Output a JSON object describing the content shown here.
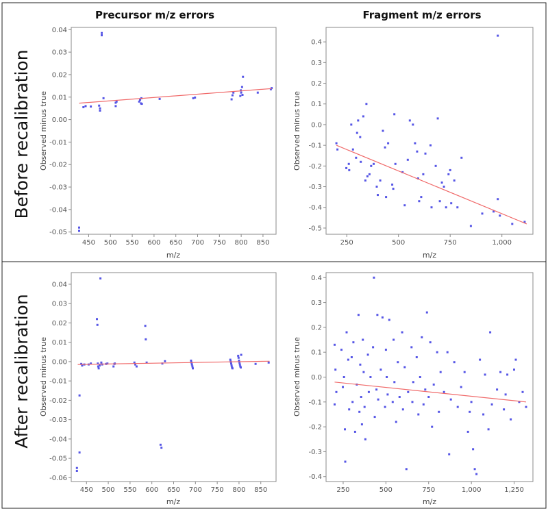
{
  "figure": {
    "column_titles": [
      "Precursor m/z errors",
      "Fragment m/z errors"
    ],
    "row_titles": [
      "Before recalibration",
      "After recalibration"
    ]
  },
  "chart_data": [
    {
      "type": "scatter",
      "id": "precursor-before",
      "title": "",
      "xlabel": "m/z",
      "ylabel": "Observed minus true",
      "xlim": [
        410,
        880
      ],
      "ylim": [
        -0.051,
        0.041
      ],
      "xticks": [
        450,
        500,
        550,
        600,
        650,
        700,
        750,
        800,
        850
      ],
      "xtick_labels": [
        "450",
        "500",
        "550",
        "600",
        "650",
        "700",
        "750",
        "800",
        "850"
      ],
      "yticks": [
        0.04,
        0.03,
        0.02,
        0.01,
        0.0,
        -0.01,
        -0.02,
        -0.03,
        -0.04,
        -0.05
      ],
      "ytick_labels": [
        "0.04",
        "0.03",
        "0.02",
        "0.01",
        "0.00",
        "-0.01",
        "-0.02",
        "-0.03",
        "-0.04",
        "-0.05"
      ],
      "x": [
        428,
        428,
        438,
        443,
        455,
        474,
        476,
        476,
        480,
        480,
        484,
        512,
        512,
        514,
        566,
        568,
        570,
        571,
        572,
        613,
        690,
        694,
        778,
        780,
        782,
        798,
        799,
        800,
        802,
        803,
        804,
        838,
        868,
        870
      ],
      "y": [
        -0.048,
        -0.0495,
        0.0055,
        0.006,
        0.0058,
        0.0062,
        0.004,
        0.005,
        0.0375,
        0.0385,
        0.0095,
        0.006,
        0.0075,
        0.008,
        0.008,
        0.0088,
        0.0072,
        0.0095,
        0.007,
        0.0092,
        0.0095,
        0.0098,
        0.009,
        0.0108,
        0.012,
        0.0105,
        0.013,
        0.012,
        0.0145,
        0.011,
        0.019,
        0.012,
        0.0135,
        0.014
      ],
      "fit": {
        "x": [
          428,
          870
        ],
        "y": [
          0.0073,
          0.0138
        ]
      }
    },
    {
      "type": "scatter",
      "id": "fragment-before",
      "title": "",
      "xlabel": "m/z",
      "ylabel": "Observed minus true",
      "xlim": [
        150,
        1150
      ],
      "ylim": [
        -0.53,
        0.47
      ],
      "xticks": [
        250,
        500,
        750,
        1000
      ],
      "xtick_labels": [
        "250",
        "500",
        "750",
        "1,000"
      ],
      "yticks": [
        0.4,
        0.3,
        0.2,
        0.1,
        0.0,
        -0.1,
        -0.2,
        -0.3,
        -0.4,
        -0.5
      ],
      "ytick_labels": [
        "0.4",
        "0.3",
        "0.2",
        "0.1",
        "0.0",
        "-0.1",
        "-0.2",
        "-0.3",
        "-0.4",
        "-0.5"
      ],
      "x": [
        200,
        205,
        248,
        260,
        262,
        272,
        280,
        295,
        300,
        305,
        315,
        318,
        330,
        340,
        345,
        350,
        360,
        368,
        380,
        395,
        400,
        412,
        425,
        435,
        440,
        450,
        470,
        475,
        480,
        485,
        520,
        530,
        545,
        555,
        570,
        580,
        590,
        595,
        600,
        610,
        620,
        630,
        655,
        660,
        680,
        690,
        700,
        710,
        720,
        730,
        742,
        750,
        755,
        770,
        785,
        805,
        850,
        905,
        960,
        980,
        990,
        1050,
        1110
      ],
      "y": [
        -0.09,
        -0.12,
        -0.21,
        -0.19,
        -0.22,
        0.0,
        -0.12,
        -0.16,
        -0.04,
        0.02,
        -0.06,
        -0.18,
        0.04,
        -0.27,
        0.1,
        -0.25,
        -0.24,
        -0.2,
        -0.19,
        -0.3,
        -0.34,
        -0.27,
        -0.03,
        -0.11,
        -0.35,
        -0.09,
        -0.29,
        -0.31,
        0.05,
        -0.19,
        -0.23,
        -0.39,
        -0.17,
        0.02,
        0.0,
        -0.09,
        -0.13,
        -0.26,
        -0.37,
        -0.35,
        -0.24,
        -0.14,
        -0.1,
        -0.4,
        -0.2,
        0.03,
        -0.37,
        -0.28,
        -0.3,
        -0.4,
        -0.24,
        -0.22,
        -0.38,
        -0.27,
        -0.4,
        -0.16,
        -0.49,
        -0.43,
        -0.42,
        -0.36,
        -0.44,
        -0.48,
        -0.47
      ],
      "extra_points": [
        {
          "x": 980,
          "y": 0.43
        }
      ],
      "fit": {
        "x": [
          200,
          1120
        ],
        "y": [
          -0.1,
          -0.48
        ]
      }
    },
    {
      "type": "scatter",
      "id": "precursor-after",
      "title": "",
      "xlabel": "m/z",
      "ylabel": "Observed minus true",
      "xlim": [
        415,
        885
      ],
      "ylim": [
        -0.062,
        0.046
      ],
      "xticks": [
        450,
        500,
        550,
        600,
        650,
        700,
        750,
        800,
        850
      ],
      "xtick_labels": [
        "450",
        "500",
        "550",
        "600",
        "650",
        "700",
        "750",
        "800",
        "850"
      ],
      "yticks": [
        0.04,
        0.03,
        0.02,
        0.01,
        0.0,
        -0.01,
        -0.02,
        -0.03,
        -0.04,
        -0.05,
        -0.06
      ],
      "ytick_labels": [
        "0.04",
        "0.03",
        "0.02",
        "0.01",
        "0.00",
        "-0.01",
        "-0.02",
        "-0.03",
        "-0.04",
        "-0.05",
        "-0.06"
      ],
      "x": [
        428,
        428,
        434,
        434,
        438,
        440,
        445,
        455,
        460,
        474,
        475,
        476,
        477,
        478,
        480,
        482,
        484,
        486,
        495,
        498,
        512,
        514,
        515,
        560,
        562,
        565,
        585,
        586,
        588,
        620,
        622,
        624,
        630,
        690,
        691,
        692,
        693,
        694,
        780,
        781,
        782,
        783,
        784,
        785,
        798,
        799,
        800,
        801,
        802,
        803,
        804,
        805,
        838,
        868
      ],
      "y": [
        -0.055,
        -0.0565,
        -0.047,
        -0.0175,
        -0.0012,
        -0.002,
        -0.0015,
        -0.0015,
        -0.001,
        0.022,
        0.019,
        -0.001,
        -0.0025,
        -0.0035,
        -0.002,
        0.043,
        -0.0005,
        -0.0015,
        -0.0012,
        -0.001,
        -0.0025,
        -0.0012,
        -0.001,
        -0.0005,
        -0.0015,
        -0.0025,
        0.0185,
        0.0115,
        -0.0005,
        -0.043,
        -0.0445,
        -0.001,
        0.0002,
        0.0005,
        -0.0005,
        -0.0015,
        -0.0025,
        -0.0035,
        0.001,
        0.0,
        -0.001,
        -0.002,
        -0.003,
        -0.0035,
        0.003,
        0.002,
        0.0005,
        -0.0005,
        -0.0015,
        -0.0025,
        -0.003,
        0.0035,
        -0.0012,
        -0.0005
      ],
      "fit": {
        "x": [
          430,
          870
        ],
        "y": [
          -0.0015,
          0.0002
        ]
      }
    },
    {
      "type": "scatter",
      "id": "fragment-after",
      "title": "",
      "xlabel": "m/z",
      "ylabel": "Observed minus true",
      "xlim": [
        150,
        1360
      ],
      "ylim": [
        -0.42,
        0.42
      ],
      "xticks": [
        250,
        500,
        750,
        1000,
        1250
      ],
      "xtick_labels": [
        "250",
        "500",
        "750",
        "1,000",
        "1,250"
      ],
      "yticks": [
        0.4,
        0.3,
        0.2,
        0.1,
        0.0,
        -0.1,
        -0.2,
        -0.3,
        -0.4
      ],
      "ytick_labels": [
        "0.4",
        "0.3",
        "0.2",
        "0.1",
        "0.0",
        "-0.1",
        "-0.2",
        "-0.3",
        "-0.4"
      ],
      "x": [
        200,
        200,
        205,
        210,
        240,
        248,
        255,
        260,
        262,
        270,
        280,
        285,
        300,
        305,
        310,
        320,
        330,
        340,
        345,
        350,
        355,
        360,
        365,
        370,
        375,
        380,
        395,
        400,
        410,
        425,
        430,
        435,
        445,
        450,
        455,
        470,
        480,
        495,
        500,
        505,
        510,
        520,
        540,
        545,
        550,
        560,
        570,
        580,
        595,
        600,
        610,
        620,
        630,
        650,
        655,
        660,
        680,
        690,
        700,
        710,
        720,
        730,
        740,
        750,
        760,
        770,
        780,
        800,
        810,
        820,
        840,
        860,
        870,
        880,
        900,
        920,
        940,
        960,
        980,
        990,
        1000,
        1010,
        1020,
        1030,
        1050,
        1070,
        1080,
        1100,
        1110,
        1120,
        1150,
        1170,
        1190,
        1200,
        1210,
        1230,
        1250,
        1260,
        1280,
        1300,
        1320
      ],
      "y": [
        0.13,
        -0.11,
        0.03,
        -0.06,
        0.11,
        -0.04,
        0.0,
        -0.21,
        -0.34,
        0.18,
        0.07,
        -0.13,
        0.08,
        -0.1,
        0.14,
        -0.22,
        -0.03,
        0.25,
        -0.14,
        0.05,
        -0.08,
        -0.19,
        0.15,
        0.02,
        -0.12,
        -0.25,
        0.09,
        -0.06,
        0.0,
        0.12,
        0.4,
        -0.16,
        -0.05,
        0.25,
        -0.09,
        0.03,
        0.24,
        -0.12,
        0.11,
        0.0,
        -0.07,
        0.23,
        -0.1,
        0.15,
        -0.02,
        -0.18,
        0.06,
        -0.08,
        0.18,
        -0.13,
        0.04,
        -0.37,
        -0.06,
        0.12,
        -0.1,
        -0.02,
        0.08,
        -0.15,
        0.0,
        0.16,
        -0.11,
        -0.05,
        0.26,
        -0.08,
        0.14,
        -0.2,
        -0.03,
        0.1,
        -0.14,
        0.02,
        -0.06,
        0.1,
        -0.31,
        -0.09,
        0.06,
        -0.12,
        -0.04,
        0.02,
        -0.22,
        -0.14,
        -0.1,
        -0.29,
        -0.37,
        -0.39,
        0.07,
        -0.15,
        0.01,
        -0.21,
        0.18,
        -0.11,
        -0.05,
        0.02,
        -0.13,
        -0.07,
        0.01,
        -0.17,
        0.03,
        0.07,
        -0.1,
        -0.06,
        -0.12
      ],
      "fit": {
        "x": [
          200,
          1320
        ],
        "y": [
          -0.02,
          -0.1
        ]
      }
    }
  ]
}
